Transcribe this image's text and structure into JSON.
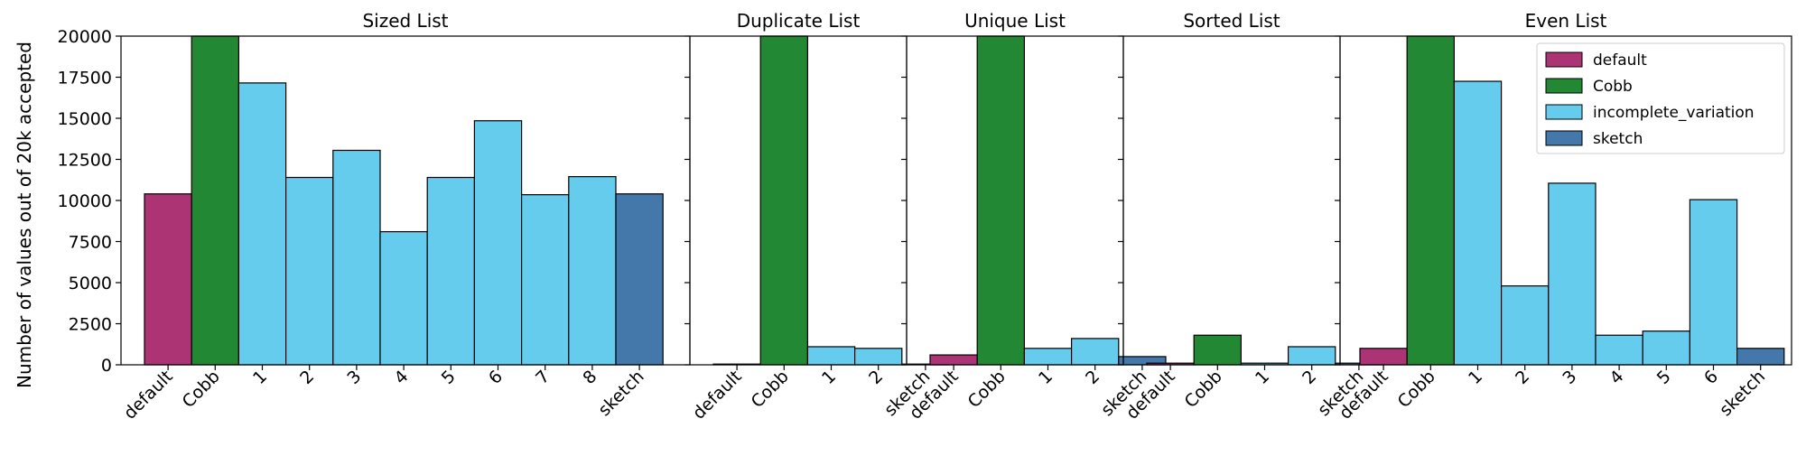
{
  "colors": {
    "default": "#ac3374",
    "Cobb": "#228833",
    "incomplete_variation": "#66ccee",
    "sketch": "#4477aa"
  },
  "chart_data": {
    "type": "bar",
    "ylabel": "Number of values out of 20k accepted",
    "ylim": [
      0,
      20000
    ],
    "yticks": [
      "0",
      "2500",
      "5000",
      "7500",
      "10000",
      "12500",
      "15000",
      "17500",
      "20000"
    ],
    "grid": false,
    "legend": {
      "placement": "top-right",
      "entries": [
        "default",
        "Cobb",
        "incomplete_variation",
        "sketch"
      ]
    },
    "panels": [
      {
        "title": "Sized List",
        "categories": [
          "default",
          "Cobb",
          "1",
          "2",
          "3",
          "4",
          "5",
          "6",
          "7",
          "8",
          "sketch"
        ],
        "values": [
          10400,
          20000,
          17150,
          11400,
          13050,
          8100,
          11400,
          14850,
          10350,
          11450,
          10400
        ],
        "series": [
          "default",
          "Cobb",
          "incomplete_variation",
          "incomplete_variation",
          "incomplete_variation",
          "incomplete_variation",
          "incomplete_variation",
          "incomplete_variation",
          "incomplete_variation",
          "incomplete_variation",
          "sketch"
        ]
      },
      {
        "title": "Duplicate List",
        "categories": [
          "default",
          "Cobb",
          "1",
          "2",
          "sketch"
        ],
        "values": [
          0,
          20000,
          1100,
          1000,
          0
        ],
        "series": [
          "default",
          "Cobb",
          "incomplete_variation",
          "incomplete_variation",
          "sketch"
        ]
      },
      {
        "title": "Unique List",
        "categories": [
          "default",
          "Cobb",
          "1",
          "2",
          "sketch"
        ],
        "values": [
          600,
          20000,
          1000,
          1600,
          500
        ],
        "series": [
          "default",
          "Cobb",
          "incomplete_variation",
          "incomplete_variation",
          "sketch"
        ]
      },
      {
        "title": "Sorted List",
        "categories": [
          "default",
          "Cobb",
          "1",
          "2",
          "sketch"
        ],
        "values": [
          100,
          1800,
          100,
          1100,
          100
        ],
        "series": [
          "default",
          "Cobb",
          "incomplete_variation",
          "incomplete_variation",
          "sketch"
        ]
      },
      {
        "title": "Even List",
        "categories": [
          "default",
          "Cobb",
          "1",
          "2",
          "3",
          "4",
          "5",
          "6",
          "sketch"
        ],
        "values": [
          1000,
          20000,
          17250,
          4800,
          11050,
          1800,
          2050,
          10050,
          1000
        ],
        "series": [
          "default",
          "Cobb",
          "incomplete_variation",
          "incomplete_variation",
          "incomplete_variation",
          "incomplete_variation",
          "incomplete_variation",
          "incomplete_variation",
          "sketch"
        ]
      }
    ]
  }
}
